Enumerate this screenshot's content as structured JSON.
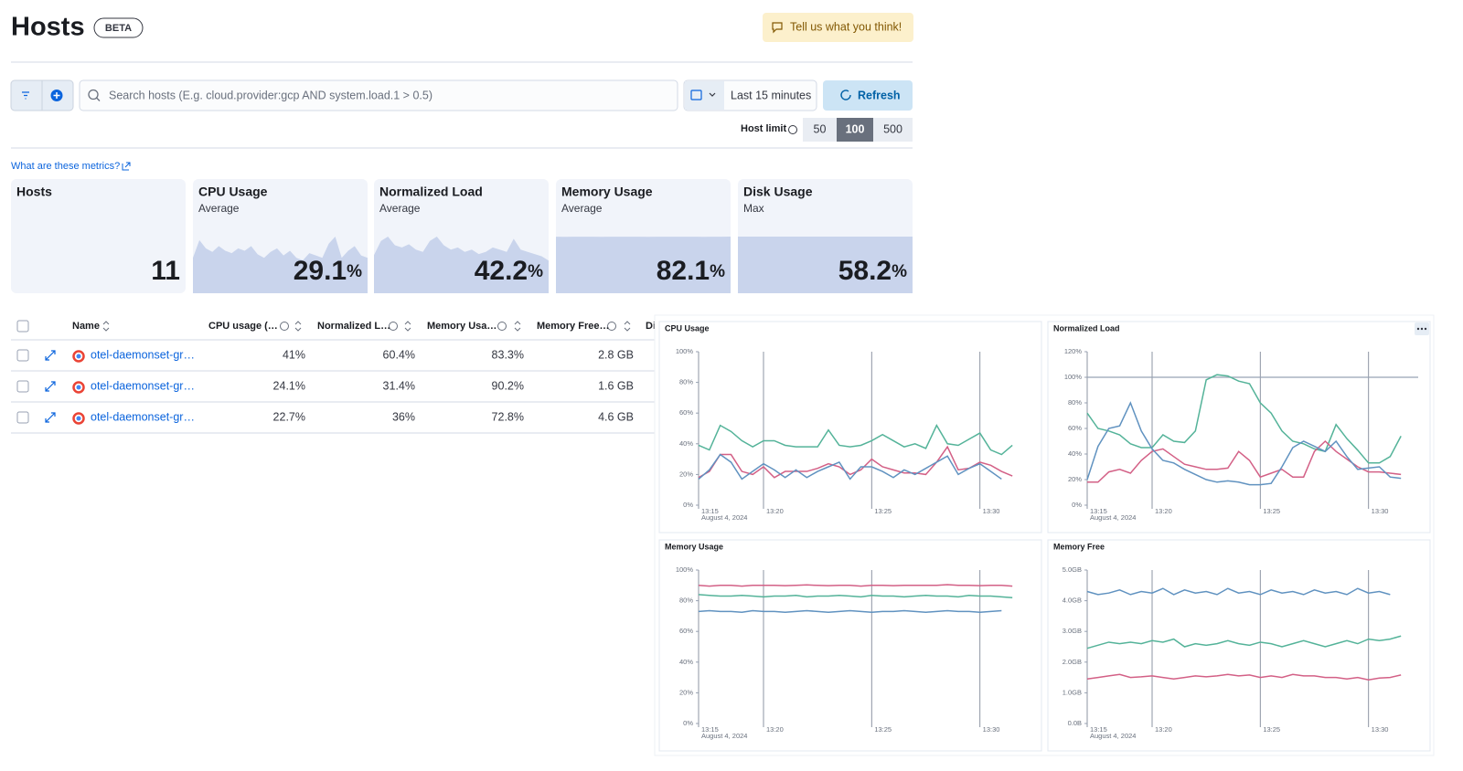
{
  "header": {
    "title": "Hosts",
    "badge": "BETA",
    "feedback": "Tell us what you think!"
  },
  "toolbar": {
    "search_placeholder": "Search hosts (E.g. cloud.provider:gcp AND system.load.1 > 0.5)",
    "date_range": "Last 15 minutes",
    "refresh": "Refresh",
    "host_limit_label": "Host limit",
    "host_limit_options": [
      "50",
      "100",
      "500"
    ],
    "host_limit_selected": "100"
  },
  "metrics_link": "What are these metrics?",
  "kpis": [
    {
      "title": "Hosts",
      "value": 11
    },
    {
      "title": "CPU Usage",
      "subtitle": "Average",
      "value": 29.1,
      "unit": "%",
      "sparkline": [
        30,
        45,
        38,
        35,
        40,
        36,
        34,
        38,
        36,
        40,
        33,
        30,
        35,
        38,
        32,
        36,
        30,
        28,
        34,
        32,
        30,
        42,
        48,
        30,
        36,
        40,
        32,
        30
      ]
    },
    {
      "title": "Normalized Load",
      "subtitle": "Average",
      "value": 42.2,
      "unit": "%",
      "sparkline": [
        35,
        48,
        52,
        44,
        42,
        45,
        40,
        38,
        48,
        52,
        44,
        40,
        42,
        38,
        40,
        36,
        38,
        42,
        40,
        38,
        50,
        40,
        38,
        36,
        34,
        30
      ]
    },
    {
      "title": "Memory Usage",
      "subtitle": "Average",
      "value": 82.1,
      "unit": "%",
      "sparkline": [
        82.1,
        82.0,
        82.1,
        82.2,
        82.1,
        82.0,
        82.1,
        82.1,
        82.2,
        82.1,
        82.0,
        82.1,
        82.1,
        82.2,
        82.1,
        82.1,
        82.0,
        82.1,
        82.2,
        82.3
      ]
    },
    {
      "title": "Disk Usage",
      "subtitle": "Max",
      "value": 58.2,
      "unit": "%",
      "sparkline": [
        58.2,
        58.2,
        58.2,
        58.2,
        58.2,
        58.2,
        58.2,
        58.2,
        58.2,
        58.2,
        58.2,
        58.2
      ]
    }
  ],
  "table": {
    "columns": [
      "Name",
      "CPU usage (…",
      "Normalized L…",
      "Memory Usa…",
      "Memory Free…",
      "Di"
    ],
    "rows": [
      [
        "otel-daemonset-gr…",
        "41%",
        "60.4%",
        "83.3%",
        "2.8 GB"
      ],
      [
        "otel-daemonset-gr…",
        "24.1%",
        "31.4%",
        "90.2%",
        "1.6 GB"
      ],
      [
        "otel-daemonset-gr…",
        "22.7%",
        "36%",
        "72.8%",
        "4.6 GB"
      ]
    ]
  },
  "chart_data": [
    {
      "type": "line",
      "title": "CPU Usage",
      "x_sublabel": "August 4, 2024",
      "x": [
        17,
        17.5,
        18,
        18.5,
        19,
        19.5,
        20,
        20.5,
        21,
        21.5,
        22,
        22.5,
        23,
        23.5,
        24,
        24.5,
        25,
        25.5,
        26,
        26.5,
        27,
        27.5,
        28,
        28.5,
        29,
        29.5,
        30,
        30.5,
        31,
        31.5
      ],
      "xlim": [
        17,
        32
      ],
      "xticks": [
        {
          "value": 17,
          "label": "13:15"
        },
        {
          "value": 20,
          "label": "13:20"
        },
        {
          "value": 25,
          "label": "13:25"
        },
        {
          "value": 30,
          "label": "13:30"
        }
      ],
      "ylim": [
        0,
        100
      ],
      "yticks": [
        {
          "value": 0,
          "label": "0%"
        },
        {
          "value": 20,
          "label": "20%"
        },
        {
          "value": 40,
          "label": "40%"
        },
        {
          "value": 60,
          "label": "60%"
        },
        {
          "value": 80,
          "label": "80%"
        },
        {
          "value": 100,
          "label": "100%"
        }
      ],
      "series": [
        {
          "color": "#54b399",
          "values": [
            39,
            36,
            52,
            48,
            42,
            38,
            42,
            42,
            39,
            38,
            38,
            38,
            49,
            39,
            38,
            39,
            42,
            46,
            42,
            38,
            40,
            37,
            52,
            40,
            39,
            43,
            47,
            36,
            33,
            39
          ]
        },
        {
          "color": "#d36086",
          "values": [
            18,
            22,
            33,
            33,
            22,
            20,
            25,
            18,
            22,
            22,
            22,
            24,
            27,
            25,
            20,
            23,
            30,
            25,
            23,
            21,
            21,
            20,
            28,
            38,
            23,
            24,
            28,
            26,
            22,
            19
          ]
        },
        {
          "color": "#6092c0",
          "values": [
            17,
            23,
            33,
            28,
            17,
            22,
            27,
            23,
            18,
            23,
            18,
            22,
            25,
            28,
            17,
            25,
            25,
            22,
            18,
            23,
            20,
            24,
            28,
            32,
            20,
            24,
            27,
            22,
            17,
            null
          ]
        }
      ]
    },
    {
      "type": "line",
      "title": "Normalized Load",
      "x_sublabel": "August 4, 2024",
      "x": [
        17,
        17.5,
        18,
        18.5,
        19,
        19.5,
        20,
        20.5,
        21,
        21.5,
        22,
        22.5,
        23,
        23.5,
        24,
        24.5,
        25,
        25.5,
        26,
        26.5,
        27,
        27.5,
        28,
        28.5,
        29,
        29.5,
        30,
        30.5,
        31,
        31.5
      ],
      "xlim": [
        17,
        32
      ],
      "xticks": [
        {
          "value": 17,
          "label": "13:15"
        },
        {
          "value": 20,
          "label": "13:20"
        },
        {
          "value": 25,
          "label": "13:25"
        },
        {
          "value": 30,
          "label": "13:30"
        }
      ],
      "ylim": [
        0,
        120
      ],
      "yticks": [
        {
          "value": 0,
          "label": "0%"
        },
        {
          "value": 20,
          "label": "20%"
        },
        {
          "value": 40,
          "label": "40%"
        },
        {
          "value": 60,
          "label": "60%"
        },
        {
          "value": 80,
          "label": "80%"
        },
        {
          "value": 100,
          "label": "100%"
        },
        {
          "value": 120,
          "label": "120%"
        }
      ],
      "reference_line": 100,
      "series": [
        {
          "color": "#54b399",
          "values": [
            72,
            60,
            58,
            55,
            48,
            45,
            45,
            55,
            50,
            49,
            58,
            98,
            102,
            101,
            97,
            95,
            80,
            72,
            58,
            50,
            48,
            44,
            42,
            63,
            52,
            43,
            33,
            33,
            38,
            54
          ]
        },
        {
          "color": "#d36086",
          "values": [
            18,
            18,
            26,
            28,
            25,
            35,
            42,
            44,
            38,
            32,
            30,
            28,
            28,
            29,
            42,
            35,
            22,
            25,
            28,
            22,
            22,
            42,
            50,
            42,
            36,
            30,
            26,
            26,
            25,
            24
          ]
        },
        {
          "color": "#6092c0",
          "values": [
            20,
            46,
            60,
            62,
            80,
            58,
            44,
            35,
            33,
            28,
            24,
            20,
            18,
            19,
            18,
            16,
            16,
            17,
            30,
            45,
            50,
            46,
            42,
            50,
            38,
            28,
            29,
            30,
            22,
            21
          ]
        }
      ]
    },
    {
      "type": "line",
      "title": "Memory Usage",
      "x_sublabel": "August 4, 2024",
      "x": [
        17,
        17.5,
        18,
        18.5,
        19,
        19.5,
        20,
        20.5,
        21,
        21.5,
        22,
        22.5,
        23,
        23.5,
        24,
        24.5,
        25,
        25.5,
        26,
        26.5,
        27,
        27.5,
        28,
        28.5,
        29,
        29.5,
        30,
        30.5,
        31,
        31.5
      ],
      "xlim": [
        17,
        32
      ],
      "xticks": [
        {
          "value": 17,
          "label": "13:15"
        },
        {
          "value": 20,
          "label": "13:20"
        },
        {
          "value": 25,
          "label": "13:25"
        },
        {
          "value": 30,
          "label": "13:30"
        }
      ],
      "ylim": [
        0,
        100
      ],
      "yticks": [
        {
          "value": 0,
          "label": "0%"
        },
        {
          "value": 20,
          "label": "20%"
        },
        {
          "value": 40,
          "label": "40%"
        },
        {
          "value": 60,
          "label": "60%"
        },
        {
          "value": 80,
          "label": "80%"
        },
        {
          "value": 100,
          "label": "100%"
        }
      ],
      "series": [
        {
          "color": "#d36086",
          "values": [
            90,
            89.5,
            90,
            90,
            89.5,
            90,
            90,
            90,
            89.8,
            90,
            90.3,
            90,
            89.8,
            90,
            90,
            89.5,
            90,
            90,
            89.8,
            90,
            90,
            90,
            90,
            90.5,
            90,
            90,
            89.8,
            90,
            90,
            89.5
          ]
        },
        {
          "color": "#54b399",
          "values": [
            84,
            83.5,
            83,
            83,
            83.5,
            83,
            82.5,
            83,
            83,
            83.5,
            82.5,
            83,
            83,
            83.5,
            83,
            82.5,
            83.5,
            83,
            83,
            82.5,
            83,
            83.5,
            83,
            83,
            82.5,
            83.5,
            83,
            83,
            82.5,
            82
          ]
        },
        {
          "color": "#6092c0",
          "values": [
            73,
            73.5,
            73,
            73,
            72.5,
            73.5,
            73,
            73,
            72.5,
            73,
            73.5,
            73,
            72.5,
            73,
            73.5,
            73,
            72.5,
            73,
            73,
            73.5,
            73,
            72.5,
            73,
            73.5,
            73,
            73,
            72.5,
            73,
            73.5,
            null
          ]
        }
      ]
    },
    {
      "type": "line",
      "title": "Memory Free",
      "x_sublabel": "August 4, 2024",
      "x": [
        17,
        17.5,
        18,
        18.5,
        19,
        19.5,
        20,
        20.5,
        21,
        21.5,
        22,
        22.5,
        23,
        23.5,
        24,
        24.5,
        25,
        25.5,
        26,
        26.5,
        27,
        27.5,
        28,
        28.5,
        29,
        29.5,
        30,
        30.5,
        31,
        31.5
      ],
      "xlim": [
        17,
        32
      ],
      "xticks": [
        {
          "value": 17,
          "label": "13:15"
        },
        {
          "value": 20,
          "label": "13:20"
        },
        {
          "value": 25,
          "label": "13:25"
        },
        {
          "value": 30,
          "label": "13:30"
        }
      ],
      "ylim": [
        0,
        5
      ],
      "yticks": [
        {
          "value": 0,
          "label": "0.0B"
        },
        {
          "value": 1,
          "label": "1.0GB"
        },
        {
          "value": 2,
          "label": "2.0GB"
        },
        {
          "value": 3,
          "label": "3.0GB"
        },
        {
          "value": 4,
          "label": "4.0GB"
        },
        {
          "value": 5,
          "label": "5.0GB"
        }
      ],
      "series": [
        {
          "color": "#6092c0",
          "values": [
            4.3,
            4.2,
            4.25,
            4.35,
            4.2,
            4.3,
            4.25,
            4.4,
            4.2,
            4.35,
            4.25,
            4.3,
            4.2,
            4.4,
            4.25,
            4.3,
            4.2,
            4.35,
            4.25,
            4.3,
            4.2,
            4.35,
            4.25,
            4.3,
            4.2,
            4.4,
            4.25,
            4.3,
            4.2,
            null
          ]
        },
        {
          "color": "#54b399",
          "values": [
            2.45,
            2.55,
            2.65,
            2.6,
            2.65,
            2.6,
            2.7,
            2.65,
            2.75,
            2.5,
            2.6,
            2.55,
            2.6,
            2.7,
            2.6,
            2.55,
            2.65,
            2.6,
            2.5,
            2.6,
            2.7,
            2.6,
            2.5,
            2.6,
            2.7,
            2.6,
            2.75,
            2.7,
            2.75,
            2.85
          ]
        },
        {
          "color": "#d36086",
          "values": [
            1.45,
            1.5,
            1.55,
            1.6,
            1.5,
            1.52,
            1.55,
            1.5,
            1.45,
            1.5,
            1.55,
            1.52,
            1.55,
            1.6,
            1.55,
            1.58,
            1.5,
            1.55,
            1.5,
            1.6,
            1.55,
            1.55,
            1.5,
            1.5,
            1.45,
            1.5,
            1.42,
            1.48,
            1.5,
            1.58
          ]
        }
      ]
    }
  ]
}
